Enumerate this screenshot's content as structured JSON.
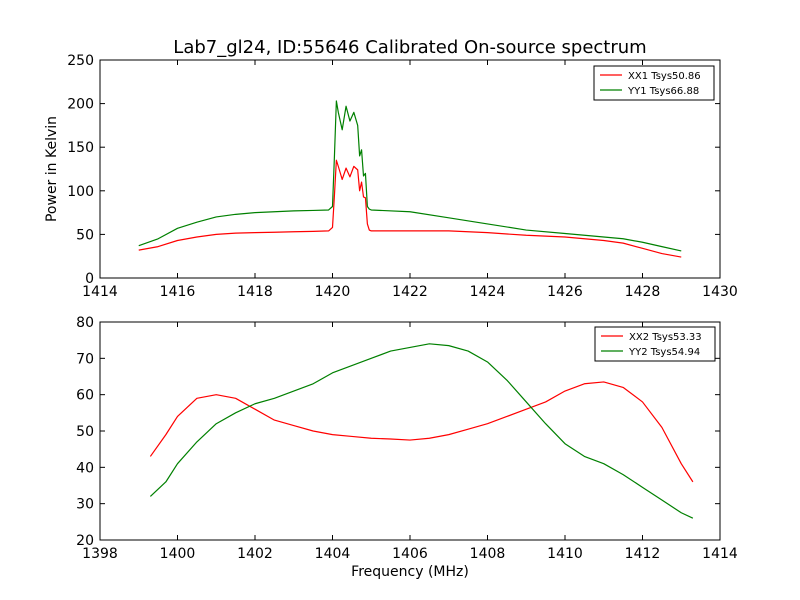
{
  "title": "Lab7_gl24, ID:55646 Calibrated On-source spectrum",
  "chart_data": [
    {
      "type": "line",
      "ylabel": "Power in Kelvin",
      "xlabel": "",
      "xlim": [
        1414,
        1430
      ],
      "ylim": [
        0,
        250
      ],
      "xticks": [
        1414,
        1416,
        1418,
        1420,
        1422,
        1424,
        1426,
        1428,
        1430
      ],
      "yticks": [
        0,
        50,
        100,
        150,
        200,
        250
      ],
      "legend": "top-right",
      "grid": false,
      "series": [
        {
          "name": "XX1 Tsys50.86",
          "color": "#ff0000",
          "points": [
            [
              1415.0,
              32
            ],
            [
              1415.5,
              36
            ],
            [
              1416.0,
              43
            ],
            [
              1416.5,
              47
            ],
            [
              1417.0,
              50
            ],
            [
              1417.5,
              51.5
            ],
            [
              1418.0,
              52
            ],
            [
              1418.5,
              52.5
            ],
            [
              1419.0,
              53
            ],
            [
              1419.5,
              53.5
            ],
            [
              1419.9,
              54
            ],
            [
              1420.0,
              58
            ],
            [
              1420.05,
              95
            ],
            [
              1420.1,
              135
            ],
            [
              1420.15,
              128
            ],
            [
              1420.25,
              113
            ],
            [
              1420.35,
              126
            ],
            [
              1420.45,
              116
            ],
            [
              1420.55,
              128
            ],
            [
              1420.65,
              124
            ],
            [
              1420.7,
              100
            ],
            [
              1420.75,
              110
            ],
            [
              1420.8,
              93
            ],
            [
              1420.85,
              92
            ],
            [
              1420.9,
              62
            ],
            [
              1420.95,
              55
            ],
            [
              1421.0,
              54
            ],
            [
              1422.0,
              54
            ],
            [
              1423.0,
              54
            ],
            [
              1424.0,
              52
            ],
            [
              1425.0,
              49
            ],
            [
              1426.0,
              47
            ],
            [
              1427.0,
              43
            ],
            [
              1427.5,
              40
            ],
            [
              1428.0,
              34
            ],
            [
              1428.5,
              28
            ],
            [
              1429.0,
              24
            ]
          ]
        },
        {
          "name": "YY1 Tsys66.88",
          "color": "#008000",
          "points": [
            [
              1415.0,
              37
            ],
            [
              1415.5,
              45
            ],
            [
              1416.0,
              57
            ],
            [
              1416.5,
              64
            ],
            [
              1417.0,
              70
            ],
            [
              1417.5,
              73
            ],
            [
              1418.0,
              75
            ],
            [
              1418.5,
              76
            ],
            [
              1419.0,
              77
            ],
            [
              1419.5,
              77.5
            ],
            [
              1419.9,
              78
            ],
            [
              1420.0,
              82
            ],
            [
              1420.05,
              140
            ],
            [
              1420.1,
              203
            ],
            [
              1420.15,
              190
            ],
            [
              1420.25,
              170
            ],
            [
              1420.35,
              197
            ],
            [
              1420.45,
              180
            ],
            [
              1420.55,
              190
            ],
            [
              1420.65,
              175
            ],
            [
              1420.7,
              140
            ],
            [
              1420.75,
              147
            ],
            [
              1420.8,
              117
            ],
            [
              1420.85,
              120
            ],
            [
              1420.9,
              82
            ],
            [
              1420.95,
              79
            ],
            [
              1421.0,
              78
            ],
            [
              1422.0,
              76
            ],
            [
              1423.0,
              69
            ],
            [
              1424.0,
              62
            ],
            [
              1425.0,
              55
            ],
            [
              1426.0,
              51
            ],
            [
              1427.0,
              47
            ],
            [
              1427.5,
              45
            ],
            [
              1428.0,
              41
            ],
            [
              1428.5,
              36
            ],
            [
              1429.0,
              31
            ]
          ]
        }
      ]
    },
    {
      "type": "line",
      "ylabel": "",
      "xlabel": "Frequency (MHz)",
      "xlim": [
        1398,
        1414
      ],
      "ylim": [
        20,
        80
      ],
      "xticks": [
        1398,
        1400,
        1402,
        1404,
        1406,
        1408,
        1410,
        1412,
        1414
      ],
      "yticks": [
        20,
        30,
        40,
        50,
        60,
        70,
        80
      ],
      "legend": "top-right",
      "grid": false,
      "series": [
        {
          "name": "XX2 Tsys53.33",
          "color": "#ff0000",
          "points": [
            [
              1399.3,
              43
            ],
            [
              1399.7,
              49
            ],
            [
              1400.0,
              54
            ],
            [
              1400.5,
              59
            ],
            [
              1401.0,
              60
            ],
            [
              1401.5,
              59
            ],
            [
              1402.0,
              56
            ],
            [
              1402.5,
              53
            ],
            [
              1403.0,
              51.5
            ],
            [
              1403.5,
              50
            ],
            [
              1404.0,
              49
            ],
            [
              1404.5,
              48.5
            ],
            [
              1405.0,
              48
            ],
            [
              1405.5,
              47.8
            ],
            [
              1406.0,
              47.5
            ],
            [
              1406.5,
              48
            ],
            [
              1407.0,
              49
            ],
            [
              1407.5,
              50.5
            ],
            [
              1408.0,
              52
            ],
            [
              1408.5,
              54
            ],
            [
              1409.0,
              56
            ],
            [
              1409.5,
              58
            ],
            [
              1410.0,
              61
            ],
            [
              1410.5,
              63
            ],
            [
              1411.0,
              63.5
            ],
            [
              1411.5,
              62
            ],
            [
              1412.0,
              58
            ],
            [
              1412.5,
              51
            ],
            [
              1413.0,
              41
            ],
            [
              1413.3,
              36
            ]
          ]
        },
        {
          "name": "YY2 Tsys54.94",
          "color": "#008000",
          "points": [
            [
              1399.3,
              32
            ],
            [
              1399.7,
              36
            ],
            [
              1400.0,
              41
            ],
            [
              1400.5,
              47
            ],
            [
              1401.0,
              52
            ],
            [
              1401.5,
              55
            ],
            [
              1402.0,
              57.5
            ],
            [
              1402.5,
              59
            ],
            [
              1403.0,
              61
            ],
            [
              1403.5,
              63
            ],
            [
              1404.0,
              66
            ],
            [
              1404.5,
              68
            ],
            [
              1405.0,
              70
            ],
            [
              1405.5,
              72
            ],
            [
              1406.0,
              73
            ],
            [
              1406.5,
              74
            ],
            [
              1407.0,
              73.5
            ],
            [
              1407.5,
              72
            ],
            [
              1408.0,
              69
            ],
            [
              1408.5,
              64
            ],
            [
              1409.0,
              58
            ],
            [
              1409.5,
              52
            ],
            [
              1410.0,
              46.5
            ],
            [
              1410.5,
              43
            ],
            [
              1411.0,
              41
            ],
            [
              1411.5,
              38
            ],
            [
              1412.0,
              34.5
            ],
            [
              1412.5,
              31
            ],
            [
              1413.0,
              27.5
            ],
            [
              1413.3,
              26
            ]
          ]
        }
      ]
    }
  ]
}
